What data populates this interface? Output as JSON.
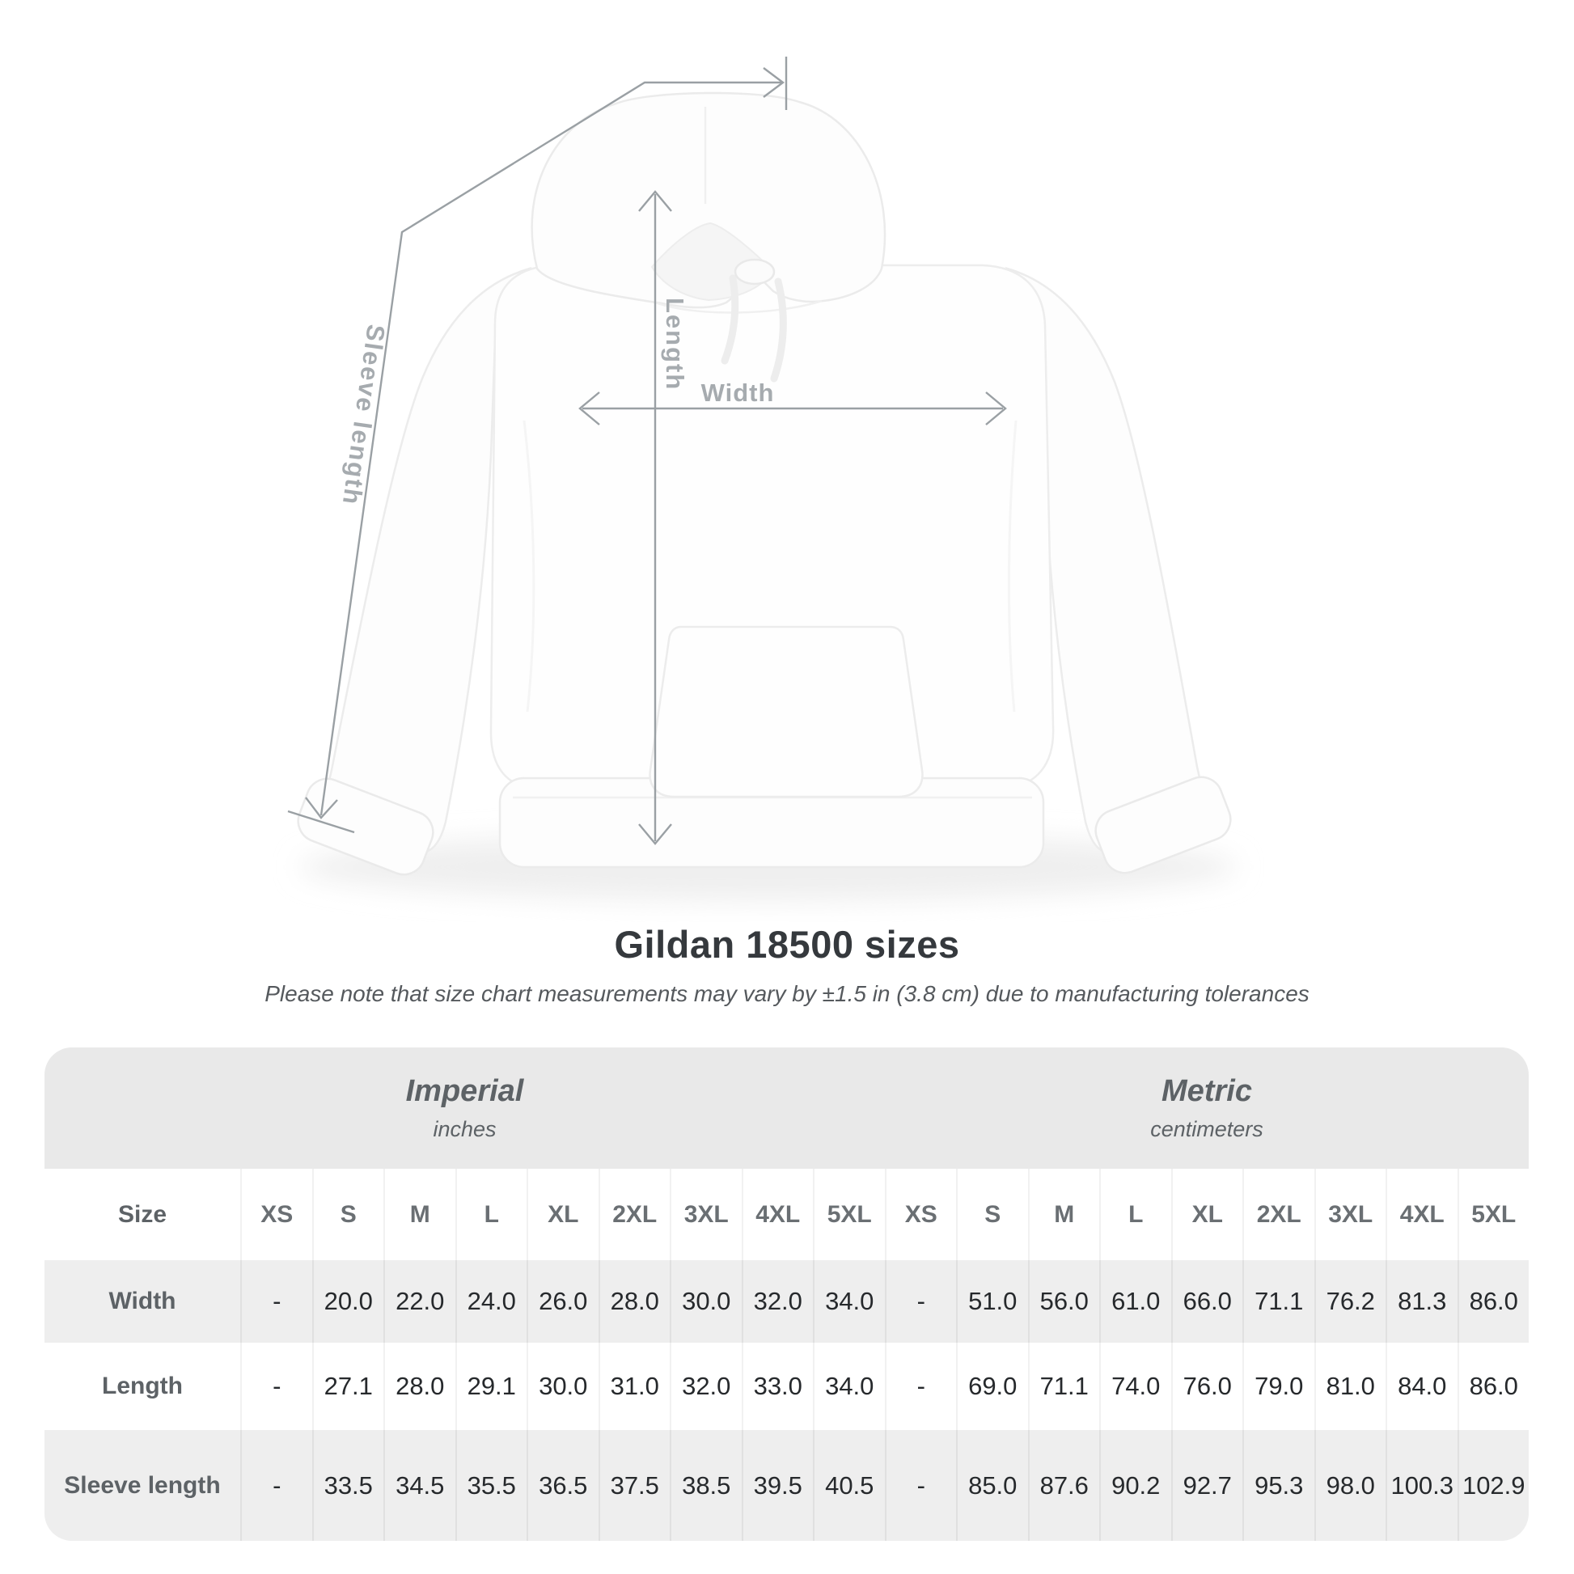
{
  "diagram": {
    "width_label": "Width",
    "length_label": "Length",
    "sleeve_label": "Sleeve length"
  },
  "header": {
    "title": "Gildan 18500 sizes",
    "subtitle": "Please note that size chart measurements may vary by ±1.5 in (3.8 cm) due to manufacturing tolerances"
  },
  "chart_data": {
    "type": "table",
    "title": "Gildan 18500 sizes",
    "note": "Please note that size chart measurements may vary by ±1.5 in (3.8 cm) due to manufacturing tolerances",
    "size_label": "Size",
    "sizes": [
      "XS",
      "S",
      "M",
      "L",
      "XL",
      "2XL",
      "3XL",
      "4XL",
      "5XL"
    ],
    "unit_groups": [
      {
        "label": "Imperial",
        "sub": "inches"
      },
      {
        "label": "Metric",
        "sub": "centimeters"
      }
    ],
    "rows": [
      {
        "label": "Width",
        "imperial": [
          "-",
          "20.0",
          "22.0",
          "24.0",
          "26.0",
          "28.0",
          "30.0",
          "32.0",
          "34.0"
        ],
        "metric": [
          "-",
          "51.0",
          "56.0",
          "61.0",
          "66.0",
          "71.1",
          "76.2",
          "81.3",
          "86.0"
        ]
      },
      {
        "label": "Length",
        "imperial": [
          "-",
          "27.1",
          "28.0",
          "29.1",
          "30.0",
          "31.0",
          "32.0",
          "33.0",
          "34.0"
        ],
        "metric": [
          "-",
          "69.0",
          "71.1",
          "74.0",
          "76.0",
          "79.0",
          "81.0",
          "84.0",
          "86.0"
        ]
      },
      {
        "label": "Sleeve length",
        "imperial": [
          "-",
          "33.5",
          "34.5",
          "35.5",
          "36.5",
          "37.5",
          "38.5",
          "39.5",
          "40.5"
        ],
        "metric": [
          "-",
          "85.0",
          "87.6",
          "90.2",
          "92.7",
          "95.3",
          "98.0",
          "100.3",
          "102.9"
        ]
      }
    ]
  },
  "colors": {
    "band_gray": "#e9e9e9",
    "row_gray": "#eeeeee",
    "value_text": "#26292c",
    "label_text": "#5d6266",
    "annotation_line": "#9aa0a4",
    "annotation_label": "#a6abaf"
  }
}
